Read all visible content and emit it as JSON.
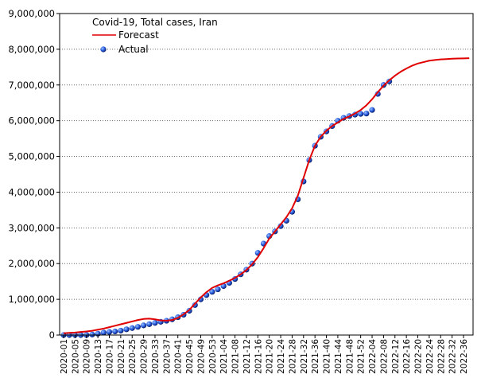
{
  "chart_data": {
    "type": "line",
    "title": "Covid-19, Total cases, Iran",
    "categories": [
      "2020-01",
      null,
      "2020-05",
      null,
      "2020-09",
      null,
      "2020-13",
      null,
      "2020-17",
      null,
      "2020-21",
      null,
      "2020-25",
      null,
      "2020-29",
      null,
      "2020-33",
      null,
      "2020-37",
      null,
      "2020-41",
      null,
      "2020-45",
      null,
      "2020-49",
      null,
      "2020-53",
      null,
      "2021-04",
      null,
      "2021-08",
      null,
      "2021-12",
      null,
      "2021-16",
      null,
      "2021-20",
      null,
      "2021-24",
      null,
      "2021-28",
      null,
      "2021-32",
      null,
      "2021-36",
      null,
      "2021-40",
      null,
      "2021-44",
      null,
      "2021-48",
      null,
      "2021-52",
      null,
      "2022-04",
      null,
      "2022-08",
      null,
      "2022-12",
      null,
      "2022-16",
      null,
      "2022-20",
      null,
      "2022-24",
      null,
      "2022-28",
      null,
      "2022-32",
      null,
      "2022-36",
      null
    ],
    "series": [
      {
        "name": "Forecast",
        "color": "#e00000",
        "style": "line",
        "values": [
          50000,
          60000,
          70000,
          85000,
          100000,
          120000,
          150000,
          180000,
          220000,
          260000,
          300000,
          340000,
          380000,
          420000,
          450000,
          460000,
          440000,
          410000,
          400000,
          420000,
          480000,
          580000,
          700000,
          880000,
          1050000,
          1200000,
          1320000,
          1390000,
          1450000,
          1520000,
          1600000,
          1700000,
          1820000,
          1980000,
          2180000,
          2430000,
          2700000,
          2900000,
          3100000,
          3300000,
          3550000,
          3900000,
          4400000,
          4900000,
          5300000,
          5550000,
          5720000,
          5850000,
          5950000,
          6050000,
          6120000,
          6200000,
          6300000,
          6430000,
          6600000,
          6800000,
          6980000,
          7130000,
          7260000,
          7370000,
          7460000,
          7540000,
          7600000,
          7640000,
          7680000,
          7700000,
          7715000,
          7725000,
          7735000,
          7740000,
          7745000,
          7750000
        ]
      },
      {
        "name": "Actual",
        "color": "#1f4fd0",
        "style": "points",
        "values": [
          0,
          0,
          0,
          0,
          1500,
          14000,
          38000,
          68000,
          88000,
          100000,
          124000,
          160000,
          195000,
          230000,
          270000,
          304000,
          340000,
          370000,
          400000,
          440000,
          500000,
          570000,
          680000,
          840000,
          1000000,
          1120000,
          1210000,
          1280000,
          1370000,
          1460000,
          1570000,
          1700000,
          1830000,
          2000000,
          2300000,
          2560000,
          2770000,
          2900000,
          3050000,
          3200000,
          3450000,
          3800000,
          4300000,
          4900000,
          5300000,
          5550000,
          5700000,
          5850000,
          6000000,
          6080000,
          6130000,
          6170000,
          6190000,
          6200000,
          6300000,
          6750000,
          7000000,
          7100000,
          null,
          null,
          null,
          null,
          null,
          null,
          null,
          null,
          null,
          null,
          null,
          null,
          null,
          null
        ]
      }
    ],
    "ylim": [
      0,
      9000000
    ],
    "yticks": [
      0,
      {
        "value": 1000000,
        "label": "1,000,000"
      },
      {
        "value": 2000000,
        "label": "2,000,000"
      },
      {
        "value": 3000000,
        "label": "3,000,000"
      },
      {
        "value": 4000000,
        "label": "4,000,000"
      },
      {
        "value": 5000000,
        "label": "5,000,000"
      },
      {
        "value": 6000000,
        "label": "6,000,000"
      },
      {
        "value": 7000000,
        "label": "7,000,000"
      },
      {
        "value": 8000000,
        "label": "8,000,000"
      },
      {
        "value": 9000000,
        "label": "9,000,000"
      }
    ],
    "grid": true
  }
}
